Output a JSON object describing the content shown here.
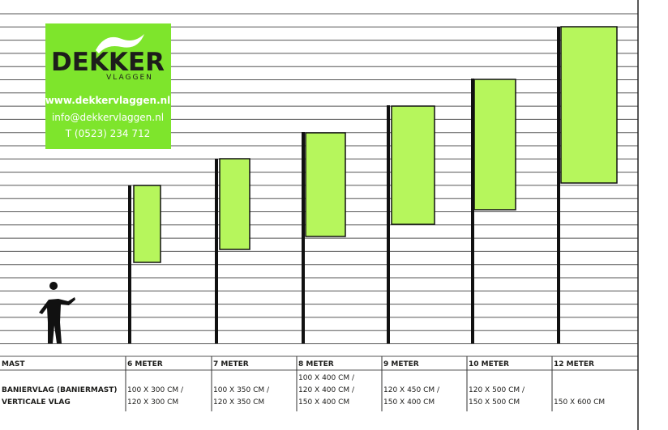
{
  "logo": {
    "brand": "DEKKER",
    "sub": "VLAGGEN",
    "website": "www.dekkervlaggen.nl",
    "email": "info@dekkervlaggen.nl",
    "phone": "T (0523) 234 712"
  },
  "table": {
    "header": [
      "MAST",
      "6 METER",
      "7 METER",
      "8 METER",
      "9 METER",
      "10 METER",
      "12 METER"
    ],
    "rows": [
      [
        [
          "BANIERVLAG (BANIERMAST)",
          "VERTICALE VLAG"
        ],
        [
          "100 X 300 CM /",
          "120 X 300 CM"
        ],
        [
          "100 X 350 CM /",
          "120 X 350 CM"
        ],
        [
          "100 X 400 CM /",
          "120 X 400 CM /",
          "150 X 400 CM"
        ],
        [
          "120 X 450 CM /",
          "150 X 400 CM"
        ],
        [
          "120 X 500 CM /",
          "150 X 500 CM"
        ],
        [
          "150 X 600 CM"
        ]
      ]
    ]
  }
}
